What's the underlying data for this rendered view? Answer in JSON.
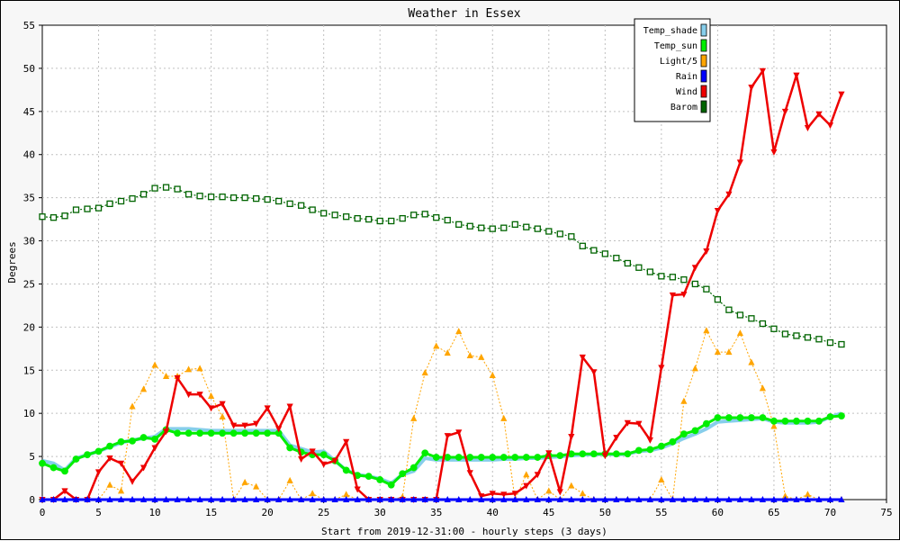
{
  "chart_data": {
    "type": "line",
    "title": "Weather in Essex",
    "xlabel": "Start from 2019-12-31:00 - hourly steps (3 days)",
    "ylabel": "Degrees",
    "xlim": [
      0,
      75
    ],
    "ylim": [
      0,
      55
    ],
    "xticks": [
      0,
      5,
      10,
      15,
      20,
      25,
      30,
      35,
      40,
      45,
      50,
      55,
      60,
      65,
      70,
      75
    ],
    "yticks": [
      0,
      5,
      10,
      15,
      20,
      25,
      30,
      35,
      40,
      45,
      50,
      55
    ],
    "grid": true,
    "legend_position": "top-right",
    "x": [
      0,
      1,
      2,
      3,
      4,
      5,
      6,
      7,
      8,
      9,
      10,
      11,
      12,
      13,
      14,
      15,
      16,
      17,
      18,
      19,
      20,
      21,
      22,
      23,
      24,
      25,
      26,
      27,
      28,
      29,
      30,
      31,
      32,
      33,
      34,
      35,
      36,
      37,
      38,
      39,
      40,
      41,
      42,
      43,
      44,
      45,
      46,
      47,
      48,
      49,
      50,
      51,
      52,
      53,
      54,
      55,
      56,
      57,
      58,
      59,
      60,
      61,
      62,
      63,
      64,
      65,
      66,
      67,
      68,
      69,
      70,
      71
    ],
    "series": [
      {
        "name": "Temp_shade",
        "color": "#87ceeb",
        "marker": "none",
        "values": [
          4.5,
          4.2,
          3.4,
          4.8,
          5.2,
          5.6,
          6.1,
          6.6,
          6.9,
          7.1,
          7.3,
          8.2,
          8.2,
          8.2,
          8.1,
          8.0,
          8.0,
          8.0,
          8.0,
          8.0,
          8.0,
          8.0,
          6.3,
          5.9,
          5.5,
          5.6,
          4.5,
          3.4,
          2.9,
          2.7,
          2.4,
          1.9,
          2.9,
          3.3,
          4.8,
          4.6,
          4.6,
          4.6,
          4.6,
          4.6,
          4.6,
          4.7,
          4.7,
          4.8,
          4.8,
          4.9,
          5.0,
          5.1,
          5.2,
          5.2,
          5.3,
          5.2,
          5.3,
          5.6,
          5.7,
          6.0,
          6.5,
          7.1,
          7.6,
          8.2,
          9.0,
          9.1,
          9.2,
          9.3,
          9.4,
          9.0,
          8.9,
          8.9,
          8.9,
          9.0,
          9.6,
          10.0
        ]
      },
      {
        "name": "Temp_sun",
        "color": "#00ee00",
        "marker": "circle",
        "values": [
          4.2,
          3.7,
          3.3,
          4.7,
          5.2,
          5.6,
          6.2,
          6.7,
          6.8,
          7.2,
          7.0,
          8.1,
          7.7,
          7.7,
          7.7,
          7.7,
          7.7,
          7.7,
          7.7,
          7.7,
          7.7,
          7.7,
          6.0,
          5.5,
          5.2,
          5.2,
          4.5,
          3.4,
          2.8,
          2.7,
          2.3,
          1.7,
          3.0,
          3.7,
          5.4,
          4.9,
          4.9,
          4.9,
          4.9,
          4.9,
          4.9,
          4.9,
          4.9,
          4.9,
          4.9,
          5.1,
          5.1,
          5.3,
          5.3,
          5.3,
          5.3,
          5.3,
          5.3,
          5.7,
          5.8,
          6.2,
          6.7,
          7.6,
          8.0,
          8.8,
          9.5,
          9.5,
          9.5,
          9.5,
          9.5,
          9.1,
          9.1,
          9.1,
          9.1,
          9.1,
          9.6,
          9.7
        ]
      },
      {
        "name": "Light/5",
        "color": "#ffa500",
        "marker": "triangle-up",
        "values": [
          0,
          0,
          0,
          0,
          0,
          0,
          1.7,
          1.0,
          10.8,
          12.8,
          15.6,
          14.3,
          14.3,
          15.1,
          15.2,
          12.0,
          9.6,
          0,
          2.0,
          1.5,
          0,
          0,
          2.2,
          0,
          0.7,
          0,
          0,
          0.6,
          0,
          0,
          0,
          0,
          0.3,
          9.4,
          14.7,
          17.8,
          17.0,
          19.5,
          16.7,
          16.5,
          14.4,
          9.4,
          0,
          2.9,
          0,
          1.0,
          0,
          1.6,
          0.7,
          0,
          0,
          0,
          0,
          0,
          0,
          2.3,
          0,
          11.4,
          15.2,
          19.6,
          17.1,
          17.1,
          19.3,
          15.9,
          12.9,
          8.5,
          0.4,
          0,
          0.6,
          0,
          0,
          0
        ]
      },
      {
        "name": "Rain",
        "color": "#0000ff",
        "marker": "triangle-up",
        "values": [
          0,
          0,
          0,
          0,
          0,
          0,
          0,
          0,
          0,
          0,
          0,
          0,
          0,
          0,
          0,
          0,
          0,
          0,
          0,
          0,
          0,
          0,
          0,
          0,
          0,
          0,
          0,
          0,
          0,
          0,
          0,
          0,
          0,
          0,
          0,
          0,
          0,
          0,
          0,
          0,
          0,
          0,
          0,
          0,
          0,
          0,
          0,
          0,
          0,
          0,
          0,
          0,
          0,
          0,
          0,
          0,
          0,
          0,
          0,
          0,
          0,
          0,
          0,
          0,
          0,
          0,
          0,
          0,
          0,
          0,
          0,
          0
        ]
      },
      {
        "name": "Wind",
        "color": "#ee0000",
        "marker": "triangle-down",
        "values": [
          0,
          0,
          1.0,
          0,
          0,
          3.2,
          4.8,
          4.2,
          2.1,
          3.7,
          6.0,
          7.9,
          14.1,
          12.2,
          12.2,
          10.6,
          11.1,
          8.6,
          8.6,
          8.8,
          10.6,
          8.2,
          10.8,
          4.7,
          5.6,
          4.1,
          4.5,
          6.7,
          1.2,
          0,
          0,
          0,
          0,
          0,
          0,
          0,
          7.4,
          7.8,
          3.1,
          0.4,
          0.7,
          0.6,
          0.7,
          1.6,
          2.9,
          5.4,
          0.9,
          7.3,
          16.5,
          14.8,
          5.1,
          7.2,
          8.9,
          8.8,
          6.9,
          15.3,
          23.7,
          23.8,
          26.9,
          28.8,
          33.5,
          35.4,
          39.1,
          47.8,
          49.7,
          40.3,
          45.0,
          49.2,
          43.1,
          44.7,
          43.4,
          47.0
        ]
      },
      {
        "name": "Barom",
        "color": "#006400",
        "marker": "square",
        "values": [
          32.8,
          32.7,
          32.9,
          33.6,
          33.7,
          33.8,
          34.3,
          34.6,
          34.9,
          35.4,
          36.1,
          36.2,
          36.0,
          35.4,
          35.2,
          35.1,
          35.1,
          35.0,
          35.0,
          34.9,
          34.8,
          34.6,
          34.3,
          34.1,
          33.6,
          33.2,
          33.0,
          32.8,
          32.6,
          32.5,
          32.3,
          32.3,
          32.6,
          33.0,
          33.1,
          32.7,
          32.4,
          31.9,
          31.7,
          31.5,
          31.4,
          31.5,
          31.9,
          31.6,
          31.4,
          31.1,
          30.8,
          30.5,
          29.4,
          28.9,
          28.5,
          28.0,
          27.4,
          26.9,
          26.4,
          25.9,
          25.8,
          25.5,
          25.0,
          24.4,
          23.2,
          22.0,
          21.4,
          21.0,
          20.4,
          19.8,
          19.2,
          19.0,
          18.8,
          18.6,
          18.2,
          18.0
        ]
      }
    ]
  }
}
